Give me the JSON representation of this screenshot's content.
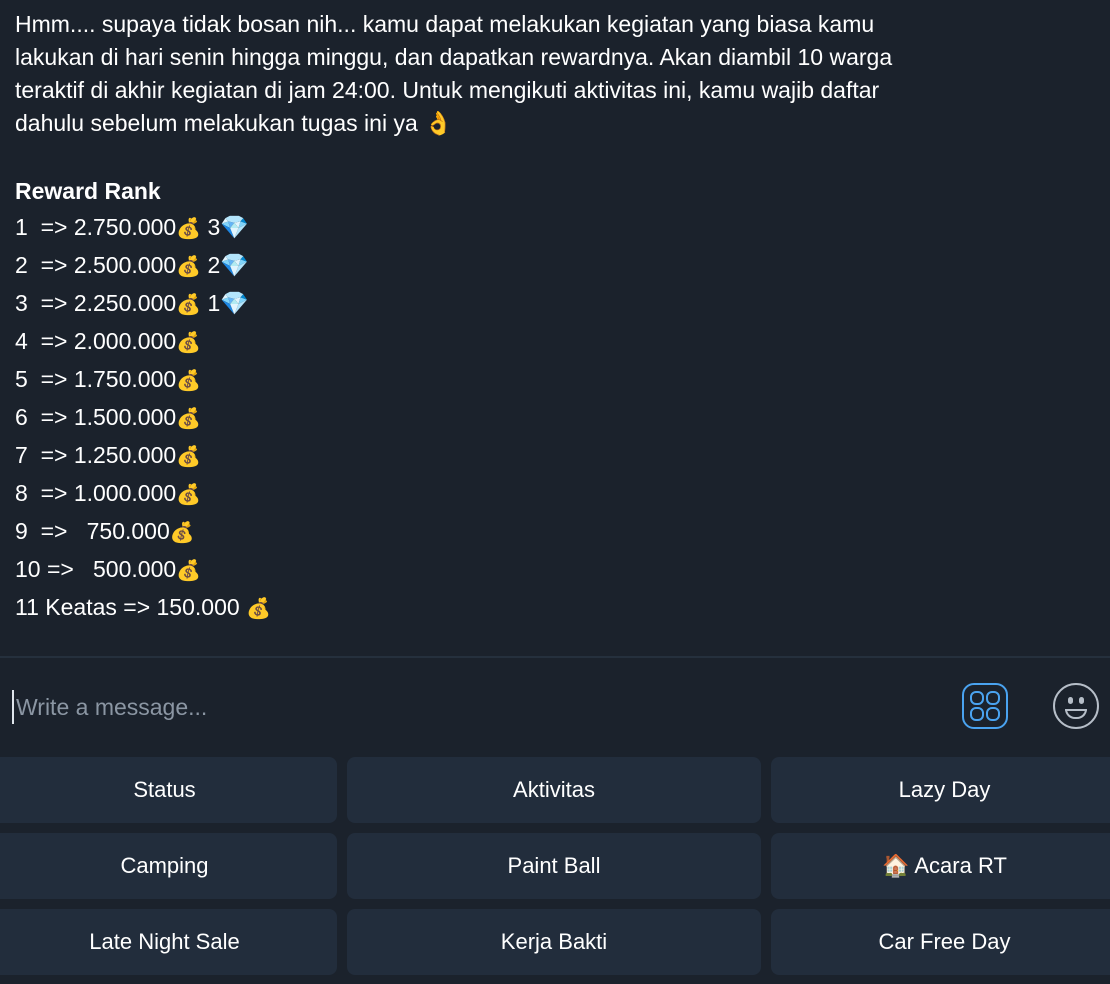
{
  "message": {
    "lines": [
      "Hmm.... supaya tidak bosan nih... kamu dapat melakukan kegiatan yang biasa kamu",
      "lakukan di hari senin hingga minggu, dan dapatkan rewardnya. Akan diambil 10 warga",
      "teraktif di akhir kegiatan di jam 24:00. Untuk mengikuti aktivitas ini, kamu wajib daftar",
      "dahulu sebelum melakukan tugas ini ya 👌"
    ],
    "reward_title": "Reward Rank",
    "ranks": [
      {
        "text": "1  => 2.750.000",
        "money": "💰",
        "extra": " 3💎"
      },
      {
        "text": "2  => 2.500.000",
        "money": "💰",
        "extra": " 2💎"
      },
      {
        "text": "3  => 2.250.000",
        "money": "💰",
        "extra": " 1💎"
      },
      {
        "text": "4  => 2.000.000",
        "money": "💰",
        "extra": ""
      },
      {
        "text": "5  => 1.750.000",
        "money": "💰",
        "extra": ""
      },
      {
        "text": "6  => 1.500.000",
        "money": "💰",
        "extra": ""
      },
      {
        "text": "7  => 1.250.000",
        "money": "💰",
        "extra": ""
      },
      {
        "text": "8  => 1.000.000",
        "money": "💰",
        "extra": ""
      },
      {
        "text": "9  =>   750.000",
        "money": "💰",
        "extra": ""
      },
      {
        "text": "10 =>   500.000",
        "money": "💰",
        "extra": ""
      },
      {
        "text": "11 Keatas => 150.000 ",
        "money": "💰",
        "extra": ""
      }
    ]
  },
  "composer": {
    "placeholder": "Write a message...",
    "apps_icon": "apps-grid-icon",
    "emoji_icon": "smiley-icon",
    "accent": "#4aa3f0"
  },
  "keyboard": [
    [
      "Status",
      "Aktivitas",
      "Lazy Day"
    ],
    [
      "Camping",
      "Paint Ball",
      "🏠 Acara RT"
    ],
    [
      "Late Night Sale",
      "Kerja Bakti",
      "Car Free Day"
    ]
  ]
}
